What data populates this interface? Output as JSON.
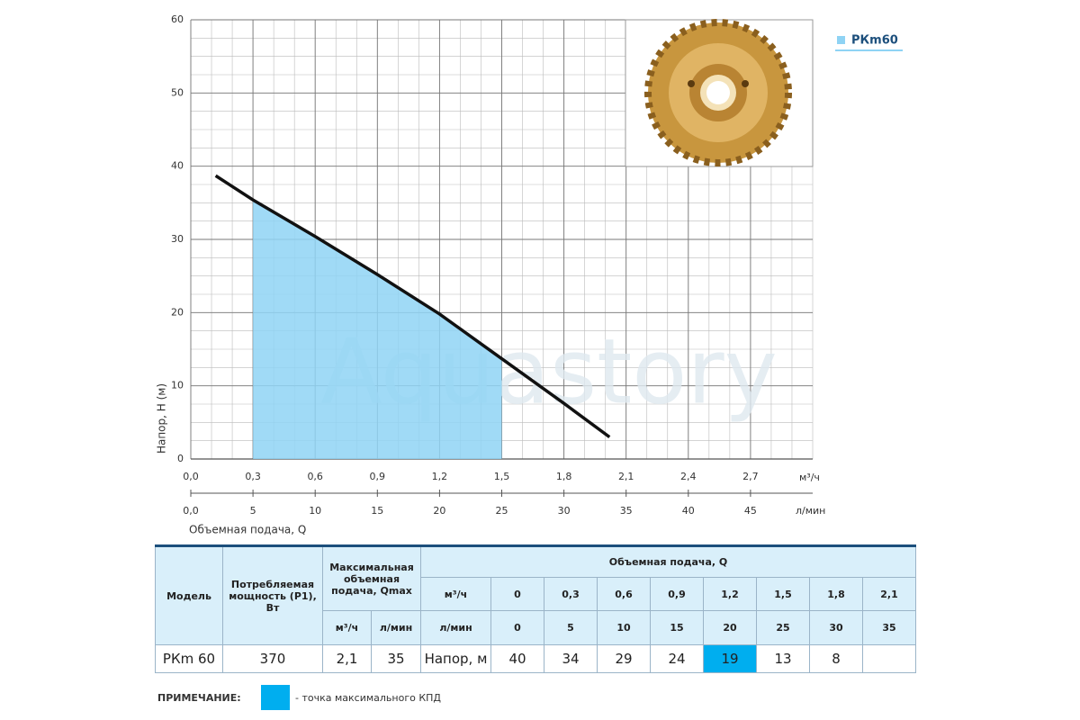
{
  "chart_data": {
    "type": "line",
    "y_label": "Напор, Н (м)",
    "x_label": "Объемная подача, Q",
    "x_unit": "м³/ч",
    "x2_unit": "л/мин",
    "watermark": "Aquastory",
    "ylim": [
      0,
      60
    ],
    "yticks": [
      0,
      10,
      20,
      30,
      40,
      50,
      60
    ],
    "xlim": [
      0,
      3.0
    ],
    "xticks": [
      {
        "value": 0,
        "label": "0,0"
      },
      {
        "value": 0.3,
        "label": "0,3"
      },
      {
        "value": 0.6,
        "label": "0,6"
      },
      {
        "value": 0.9,
        "label": "0,9"
      },
      {
        "value": 1.2,
        "label": "1,2"
      },
      {
        "value": 1.5,
        "label": "1,5"
      },
      {
        "value": 1.8,
        "label": "1,8"
      },
      {
        "value": 2.1,
        "label": "2,1"
      },
      {
        "value": 2.4,
        "label": "2,4"
      },
      {
        "value": 2.7,
        "label": "2,7"
      }
    ],
    "x2lim": [
      0,
      50
    ],
    "x2ticks": [
      {
        "value": 0,
        "label": "0,0"
      },
      5,
      10,
      15,
      20,
      25,
      30,
      35,
      40,
      45
    ],
    "grid": true,
    "legend": "top-right",
    "x": [
      0.12,
      0.3,
      0.6,
      0.9,
      1.2,
      1.5,
      1.8,
      2.02
    ],
    "series": [
      {
        "name": "РКm60",
        "color": "#8fd3f4",
        "line_color": "#111111",
        "values": [
          38.7,
          35.4,
          30.4,
          25.2,
          19.8,
          13.7,
          7.6,
          3
        ]
      }
    ],
    "shade_range": [
      0.3,
      1.5
    ]
  },
  "table": {
    "model": "Модель",
    "power": "Потребляемая мощность (Р1), Вт",
    "qmax": "Максимальная объемная подача, Qmax",
    "qmax_units": [
      "м³/ч",
      "л/мин"
    ],
    "flow": "Объемная подача, Q",
    "flow_rows": [
      {
        "unit": "м³/ч",
        "values": [
          "0",
          "0,3",
          "0,6",
          "0,9",
          "1,2",
          "1,5",
          "1,8",
          "2,1"
        ]
      },
      {
        "unit": "л/мин",
        "values": [
          "0",
          "5",
          "10",
          "15",
          "20",
          "25",
          "30",
          "35"
        ]
      }
    ],
    "row": [
      "РКm 60",
      "370",
      "2,1",
      "35",
      "Напор, м",
      "40",
      "34",
      "29",
      "24",
      "19",
      "13",
      "8"
    ],
    "highlight_index": 9,
    "highlight_color": "#00aeef"
  },
  "note": {
    "label": "ПРИМЕЧАНИЕ:",
    "text": "- точка максимального КПД"
  }
}
